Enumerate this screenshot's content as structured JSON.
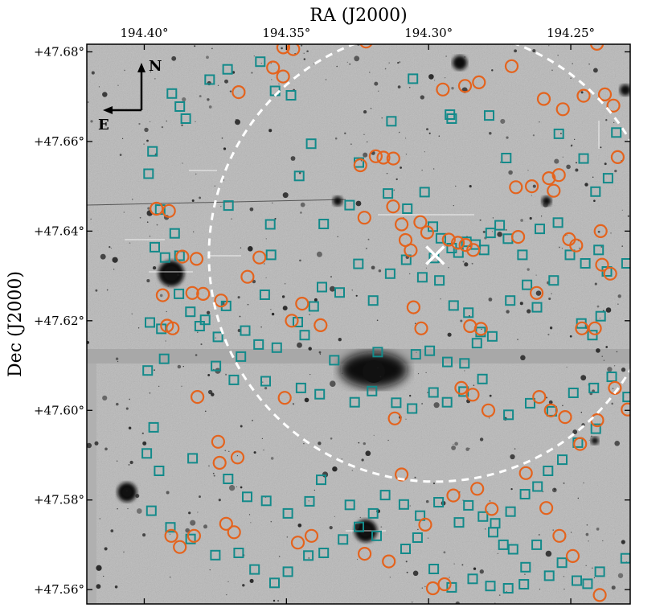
{
  "chart_data": {
    "type": "scatter",
    "title": "",
    "xlabel": "RA (J2000)",
    "ylabel": "Dec (J2000)",
    "x_axis_position": "top",
    "x_ticks": [
      194.4,
      194.35,
      194.3,
      194.25
    ],
    "x_tick_labels": [
      "194.40°",
      "194.35°",
      "194.30°",
      "194.25°"
    ],
    "y_ticks": [
      47.68,
      47.66,
      47.64,
      47.62,
      47.6,
      47.58,
      47.56
    ],
    "y_tick_labels": [
      "+47.68°",
      "+47.66°",
      "+47.64°",
      "+47.62°",
      "+47.60°",
      "+47.58°",
      "+47.56°"
    ],
    "xlim": [
      194.4202,
      194.2291
    ],
    "ylim": [
      47.5568,
      47.6817
    ],
    "background": "greyscale sky image",
    "compass": {
      "north": "N",
      "east": "E"
    },
    "center_marker": {
      "ra": 194.2977,
      "dec": 47.6346,
      "symbol": "x"
    },
    "circle_region": {
      "ra": 194.2977,
      "dec": 47.6346,
      "radius_deg": 0.0505
    },
    "series": [
      {
        "name": "squares",
        "marker": "square",
        "color": "#138a8a",
        "points": [
          [
            194.3903,
            47.6707
          ],
          [
            194.3875,
            47.6678
          ],
          [
            194.3854,
            47.6651
          ],
          [
            194.377,
            47.6738
          ],
          [
            194.3707,
            47.6761
          ],
          [
            194.3592,
            47.6778
          ],
          [
            194.354,
            47.6713
          ],
          [
            194.3484,
            47.6703
          ],
          [
            194.3413,
            47.6595
          ],
          [
            194.3245,
            47.6553
          ],
          [
            194.3131,
            47.6645
          ],
          [
            194.3055,
            47.674
          ],
          [
            194.2925,
            47.666
          ],
          [
            194.2919,
            47.6651
          ],
          [
            194.2787,
            47.6658
          ],
          [
            194.2727,
            47.6563
          ],
          [
            194.2542,
            47.6617
          ],
          [
            194.2455,
            47.6562
          ],
          [
            194.2413,
            47.6488
          ],
          [
            194.234,
            47.662
          ],
          [
            194.2369,
            47.6518
          ],
          [
            194.3971,
            47.6578
          ],
          [
            194.3985,
            47.6528
          ],
          [
            194.3944,
            47.6448
          ],
          [
            194.3893,
            47.6395
          ],
          [
            194.3876,
            47.6345
          ],
          [
            194.3704,
            47.6457
          ],
          [
            194.3557,
            47.6415
          ],
          [
            194.3455,
            47.6523
          ],
          [
            194.3369,
            47.6416
          ],
          [
            194.3278,
            47.6458
          ],
          [
            194.3143,
            47.6484
          ],
          [
            194.3075,
            47.645
          ],
          [
            194.3014,
            47.6487
          ],
          [
            194.2985,
            47.641
          ],
          [
            194.2957,
            47.6384
          ],
          [
            194.2919,
            47.6362
          ],
          [
            194.2895,
            47.6352
          ],
          [
            194.2867,
            47.6376
          ],
          [
            194.2835,
            47.637
          ],
          [
            194.2805,
            47.6358
          ],
          [
            194.2782,
            47.6396
          ],
          [
            194.275,
            47.6413
          ],
          [
            194.2721,
            47.6383
          ],
          [
            194.267,
            47.6347
          ],
          [
            194.2609,
            47.6405
          ],
          [
            194.2545,
            47.6419
          ],
          [
            194.2503,
            47.6347
          ],
          [
            194.2449,
            47.6328
          ],
          [
            194.2402,
            47.6358
          ],
          [
            194.2373,
            47.631
          ],
          [
            194.2304,
            47.6328
          ],
          [
            194.3963,
            47.6364
          ],
          [
            194.3927,
            47.6341
          ],
          [
            194.3878,
            47.626
          ],
          [
            194.3838,
            47.622
          ],
          [
            194.3786,
            47.6202
          ],
          [
            194.3712,
            47.6233
          ],
          [
            194.3645,
            47.6178
          ],
          [
            194.3576,
            47.6258
          ],
          [
            194.3554,
            47.6347
          ],
          [
            194.346,
            47.6197
          ],
          [
            194.3404,
            47.6232
          ],
          [
            194.3375,
            47.6275
          ],
          [
            194.3313,
            47.6263
          ],
          [
            194.3247,
            47.6327
          ],
          [
            194.3195,
            47.6245
          ],
          [
            194.3135,
            47.6305
          ],
          [
            194.3079,
            47.6336
          ],
          [
            194.3022,
            47.6297
          ],
          [
            194.2981,
            47.634
          ],
          [
            194.2962,
            47.629
          ],
          [
            194.2912,
            47.6234
          ],
          [
            194.286,
            47.6218
          ],
          [
            194.2817,
            47.6175
          ],
          [
            194.2776,
            47.6165
          ],
          [
            194.2713,
            47.6245
          ],
          [
            194.2654,
            47.628
          ],
          [
            194.2619,
            47.623
          ],
          [
            194.256,
            47.629
          ],
          [
            194.2463,
            47.6194
          ],
          [
            194.2424,
            47.6168
          ],
          [
            194.2395,
            47.621
          ],
          [
            194.398,
            47.6196
          ],
          [
            194.394,
            47.6182
          ],
          [
            194.3805,
            47.6188
          ],
          [
            194.3741,
            47.6164
          ],
          [
            194.366,
            47.612
          ],
          [
            194.3598,
            47.6147
          ],
          [
            194.3534,
            47.614
          ],
          [
            194.3436,
            47.6168
          ],
          [
            194.3332,
            47.6112
          ],
          [
            194.3179,
            47.613
          ],
          [
            194.3045,
            47.6125
          ],
          [
            194.2996,
            47.6133
          ],
          [
            194.2934,
            47.6108
          ],
          [
            194.2874,
            47.6105
          ],
          [
            194.283,
            47.615
          ],
          [
            194.3988,
            47.6089
          ],
          [
            194.393,
            47.6115
          ],
          [
            194.3748,
            47.6099
          ],
          [
            194.3685,
            47.6068
          ],
          [
            194.3573,
            47.6065
          ],
          [
            194.3449,
            47.605
          ],
          [
            194.3383,
            47.6036
          ],
          [
            194.326,
            47.6018
          ],
          [
            194.3199,
            47.6043
          ],
          [
            194.3114,
            47.6017
          ],
          [
            194.3058,
            47.6004
          ],
          [
            194.2983,
            47.604
          ],
          [
            194.2935,
            47.6018
          ],
          [
            194.2877,
            47.6042
          ],
          [
            194.2811,
            47.607
          ],
          [
            194.2719,
            47.599
          ],
          [
            194.2643,
            47.6016
          ],
          [
            194.2567,
            47.5998
          ],
          [
            194.2491,
            47.6039
          ],
          [
            194.2419,
            47.605
          ],
          [
            194.2356,
            47.6075
          ],
          [
            194.23,
            47.603
          ],
          [
            194.2412,
            47.5959
          ],
          [
            194.2475,
            47.5928
          ],
          [
            194.253,
            47.589
          ],
          [
            194.258,
            47.5865
          ],
          [
            194.2617,
            47.583
          ],
          [
            194.2661,
            47.5813
          ],
          [
            194.2712,
            47.5774
          ],
          [
            194.2766,
            47.5748
          ],
          [
            194.3967,
            47.5962
          ],
          [
            194.3991,
            47.5904
          ],
          [
            194.3948,
            47.5865
          ],
          [
            194.383,
            47.5893
          ],
          [
            194.3705,
            47.5847
          ],
          [
            194.3638,
            47.5807
          ],
          [
            194.3571,
            47.5798
          ],
          [
            194.3495,
            47.577
          ],
          [
            194.3419,
            47.5797
          ],
          [
            194.3378,
            47.5845
          ],
          [
            194.3277,
            47.5789
          ],
          [
            194.3195,
            47.577
          ],
          [
            194.3153,
            47.5811
          ],
          [
            194.3087,
            47.579
          ],
          [
            194.303,
            47.5765
          ],
          [
            194.2965,
            47.5795
          ],
          [
            194.2893,
            47.575
          ],
          [
            194.286,
            47.5788
          ],
          [
            194.2809,
            47.5763
          ],
          [
            194.2773,
            47.5728
          ],
          [
            194.2737,
            47.57
          ],
          [
            194.2703,
            47.569
          ],
          [
            194.2659,
            47.565
          ],
          [
            194.262,
            47.57
          ],
          [
            194.2576,
            47.5631
          ],
          [
            194.2531,
            47.566
          ],
          [
            194.2479,
            47.562
          ],
          [
            194.2441,
            47.5613
          ],
          [
            194.2398,
            47.564
          ],
          [
            194.2307,
            47.567
          ],
          [
            194.3975,
            47.5776
          ],
          [
            194.3908,
            47.5739
          ],
          [
            194.3837,
            47.5713
          ],
          [
            194.375,
            47.5677
          ],
          [
            194.3668,
            47.5682
          ],
          [
            194.3612,
            47.5645
          ],
          [
            194.3542,
            47.5615
          ],
          [
            194.3495,
            47.564
          ],
          [
            194.3423,
            47.5676
          ],
          [
            194.3369,
            47.5682
          ],
          [
            194.3301,
            47.5712
          ],
          [
            194.3245,
            47.574
          ],
          [
            194.3183,
            47.572
          ],
          [
            194.3081,
            47.5691
          ],
          [
            194.3039,
            47.5716
          ],
          [
            194.2982,
            47.5646
          ],
          [
            194.2919,
            47.5605
          ],
          [
            194.2845,
            47.5624
          ],
          [
            194.2783,
            47.5608
          ],
          [
            194.272,
            47.5603
          ],
          [
            194.2665,
            47.5612
          ]
        ]
      },
      {
        "name": "circles",
        "marker": "circle",
        "color": "#e4631d",
        "points": [
          [
            194.322,
            47.6823
          ],
          [
            194.3476,
            47.6806
          ],
          [
            194.3511,
            47.681
          ],
          [
            194.2408,
            47.6818
          ],
          [
            194.3512,
            47.6745
          ],
          [
            194.3547,
            47.6765
          ],
          [
            194.3668,
            47.671
          ],
          [
            194.324,
            47.6547
          ],
          [
            194.3186,
            47.6567
          ],
          [
            194.3159,
            47.6564
          ],
          [
            194.3124,
            47.6562
          ],
          [
            194.295,
            47.6716
          ],
          [
            194.2872,
            47.6724
          ],
          [
            194.2823,
            47.6732
          ],
          [
            194.2708,
            47.6768
          ],
          [
            194.2595,
            47.6695
          ],
          [
            194.2455,
            47.6702
          ],
          [
            194.238,
            47.6705
          ],
          [
            194.235,
            47.668
          ],
          [
            194.2335,
            47.6565
          ],
          [
            194.2528,
            47.6672
          ],
          [
            194.2693,
            47.6498
          ],
          [
            194.2637,
            47.65
          ],
          [
            194.2577,
            47.6518
          ],
          [
            194.2542,
            47.6525
          ],
          [
            194.256,
            47.649
          ],
          [
            194.3957,
            47.645
          ],
          [
            194.3913,
            47.6445
          ],
          [
            194.3226,
            47.643
          ],
          [
            194.3125,
            47.6455
          ],
          [
            194.3095,
            47.6415
          ],
          [
            194.3081,
            47.638
          ],
          [
            194.3063,
            47.6357
          ],
          [
            194.3029,
            47.642
          ],
          [
            194.3005,
            47.6397
          ],
          [
            194.2929,
            47.6381
          ],
          [
            194.2897,
            47.6374
          ],
          [
            194.287,
            47.6369
          ],
          [
            194.2843,
            47.6358
          ],
          [
            194.2685,
            47.6387
          ],
          [
            194.2506,
            47.6382
          ],
          [
            194.2481,
            47.6368
          ],
          [
            194.2395,
            47.64
          ],
          [
            194.3866,
            47.6343
          ],
          [
            194.3816,
            47.6338
          ],
          [
            194.3595,
            47.6341
          ],
          [
            194.3637,
            47.6298
          ],
          [
            194.373,
            47.6245
          ],
          [
            194.3793,
            47.626
          ],
          [
            194.3831,
            47.6262
          ],
          [
            194.3935,
            47.6257
          ],
          [
            194.392,
            47.6189
          ],
          [
            194.39,
            47.6183
          ],
          [
            194.3445,
            47.6238
          ],
          [
            194.3481,
            47.62
          ],
          [
            194.338,
            47.619
          ],
          [
            194.3053,
            47.623
          ],
          [
            194.3026,
            47.6183
          ],
          [
            194.2854,
            47.6188
          ],
          [
            194.2816,
            47.6182
          ],
          [
            194.262,
            47.6262
          ],
          [
            194.2461,
            47.6183
          ],
          [
            194.2415,
            47.6183
          ],
          [
            194.239,
            47.6325
          ],
          [
            194.2361,
            47.6305
          ],
          [
            194.3813,
            47.603
          ],
          [
            194.374,
            47.593
          ],
          [
            194.3735,
            47.5883
          ],
          [
            194.3672,
            47.5895
          ],
          [
            194.3506,
            47.6028
          ],
          [
            194.3119,
            47.5982
          ],
          [
            194.2885,
            47.605
          ],
          [
            194.2845,
            47.6035
          ],
          [
            194.279,
            47.6
          ],
          [
            194.2611,
            47.603
          ],
          [
            194.257,
            47.6
          ],
          [
            194.252,
            47.5985
          ],
          [
            194.2467,
            47.5925
          ],
          [
            194.2407,
            47.5978
          ],
          [
            194.2345,
            47.605
          ],
          [
            194.23,
            47.6002
          ],
          [
            194.3095,
            47.5857
          ],
          [
            194.3012,
            47.5745
          ],
          [
            194.2913,
            47.581
          ],
          [
            194.2829,
            47.5825
          ],
          [
            194.2778,
            47.578
          ],
          [
            194.2658,
            47.586
          ],
          [
            194.2586,
            47.5782
          ],
          [
            194.254,
            47.572
          ],
          [
            194.2493,
            47.5675
          ],
          [
            194.2398,
            47.5588
          ],
          [
            194.3905,
            47.572
          ],
          [
            194.3875,
            47.5695
          ],
          [
            194.3825,
            47.572
          ],
          [
            194.3712,
            47.5747
          ],
          [
            194.3684,
            47.5728
          ],
          [
            194.346,
            47.5705
          ],
          [
            194.3412,
            47.572
          ],
          [
            194.3225,
            47.568
          ],
          [
            194.314,
            47.5663
          ],
          [
            194.2985,
            47.5603
          ],
          [
            194.2944,
            47.5612
          ]
        ]
      }
    ]
  }
}
